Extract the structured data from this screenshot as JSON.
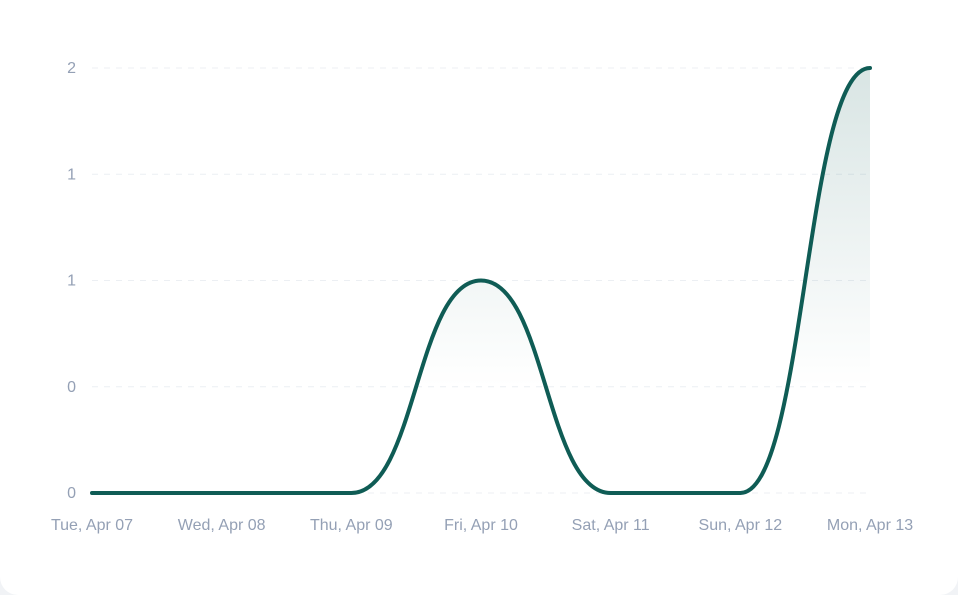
{
  "chart_data": {
    "type": "area",
    "title": "",
    "xlabel": "",
    "ylabel": "",
    "categories": [
      "Tue, Apr 07",
      "Wed, Apr 08",
      "Thu, Apr 09",
      "Fri, Apr 10",
      "Sat, Apr 11",
      "Sun, Apr 12",
      "Mon, Apr 13"
    ],
    "y_tick_labels": [
      "0",
      "0",
      "1",
      "1",
      "2"
    ],
    "ylim": [
      0,
      2
    ],
    "grid": true,
    "legend": "none",
    "series": [
      {
        "values": [
          0,
          0,
          0,
          1,
          0,
          0,
          2
        ],
        "color": "#0f5c55"
      }
    ]
  },
  "colors": {
    "line": "#0f5c55",
    "grid": "#eceff3",
    "tick_text": "#94a0b5",
    "background": "#ffffff"
  }
}
